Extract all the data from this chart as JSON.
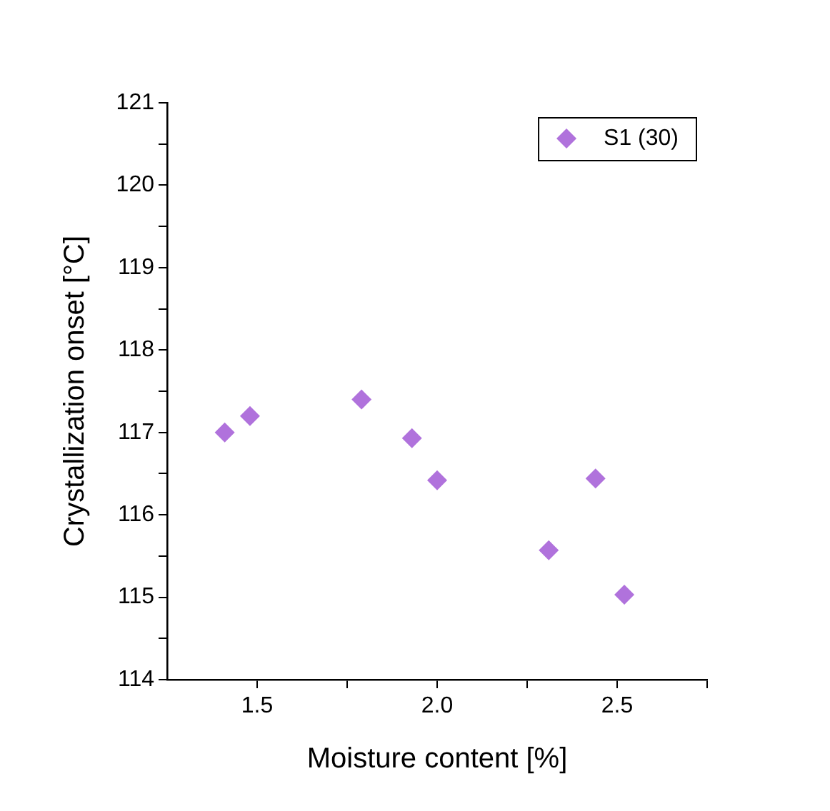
{
  "chart_data": {
    "type": "scatter",
    "xlabel": "Moisture content [%]",
    "ylabel": "Crystallization onset [°C]",
    "series": [
      {
        "name": "S1 (30)",
        "color": "#b072dc",
        "x": [
          1.41,
          1.48,
          1.79,
          1.93,
          2.0,
          2.31,
          2.44,
          2.52
        ],
        "values": [
          117.0,
          117.2,
          117.4,
          116.93,
          116.42,
          115.57,
          116.44,
          115.03
        ]
      }
    ],
    "xlim": [
      1.25,
      2.75
    ],
    "xticks": [
      {
        "value": 1.5,
        "label": "1.5"
      },
      {
        "value": 1.75,
        "label": null
      },
      {
        "value": 2,
        "label": "2.0"
      },
      {
        "value": 2.25,
        "label": null
      },
      {
        "value": 2.5,
        "label": "2.5"
      },
      {
        "value": 2.75,
        "label": null
      }
    ],
    "ylim": [
      114,
      121
    ],
    "yticks": [
      114,
      {
        "value": 114.5,
        "label": null
      },
      115,
      {
        "value": 115.5,
        "label": null
      },
      116,
      {
        "value": 116.5,
        "label": null
      },
      117,
      {
        "value": 117.5,
        "label": null
      },
      118,
      {
        "value": 118.5,
        "label": null
      },
      119,
      {
        "value": 119.5,
        "label": null
      },
      120,
      {
        "value": 120.5,
        "label": null
      },
      121
    ],
    "grid": false,
    "legend": "top right",
    "marker": "diamond"
  }
}
